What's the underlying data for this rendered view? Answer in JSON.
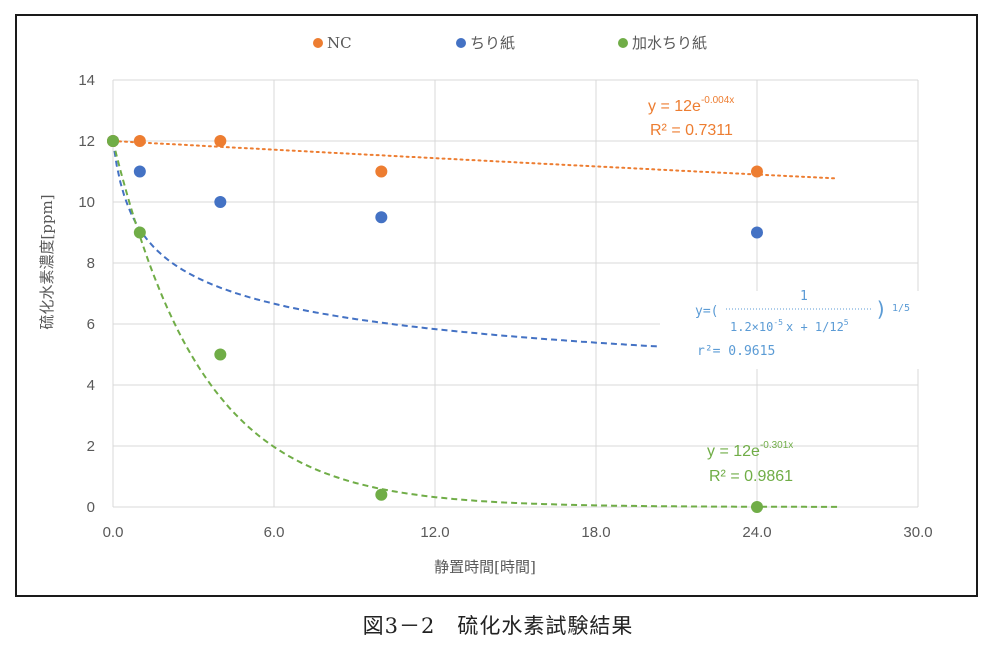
{
  "caption": "図3－2　硫化水素試験結果",
  "chart_data": {
    "type": "scatter",
    "xlabel": "静置時間[時間]",
    "ylabel": "硫化水素濃度[ppm]",
    "xlim": [
      0,
      30
    ],
    "ylim": [
      0,
      14
    ],
    "x_ticks": [
      "0.0",
      "6.0",
      "12.0",
      "18.0",
      "24.0",
      "30.0"
    ],
    "x_tick_values": [
      0,
      6,
      12,
      18,
      24,
      30
    ],
    "y_ticks": [
      "0",
      "2",
      "4",
      "6",
      "8",
      "10",
      "12",
      "14"
    ],
    "y_tick_values": [
      0,
      2,
      4,
      6,
      8,
      10,
      12,
      14
    ],
    "grid": true,
    "legend_position": "top",
    "series": [
      {
        "name": "NC",
        "color": "#ED7D31",
        "points": [
          [
            0,
            12
          ],
          [
            1,
            12
          ],
          [
            4,
            12
          ],
          [
            10,
            11
          ],
          [
            24,
            11
          ]
        ],
        "trendline": {
          "style": "dotted",
          "x_range": [
            0,
            27
          ],
          "equation": "y = 12e",
          "exponent": "-0.004x",
          "r2": "R² = 0.7311"
        }
      },
      {
        "name": "ちり紙",
        "color": "#4472C4",
        "points": [
          [
            0,
            12
          ],
          [
            1,
            11
          ],
          [
            4,
            10
          ],
          [
            10,
            9.5
          ],
          [
            24,
            9
          ]
        ],
        "trendline": {
          "style": "dashed",
          "x_range": [
            0,
            27.5
          ],
          "equation_lhs": "y=(",
          "equation_numerator": "1",
          "equation_denominator": "1.2×10",
          "equation_den_exp": "-5",
          "equation_den_rest": "x + 1/12",
          "equation_den_rest_exp": "5",
          "equation_rhs": ")",
          "equation_power": "1/5",
          "r2": "r²= 0.9615"
        }
      },
      {
        "name": "加水ちり紙",
        "color": "#70AD47",
        "points": [
          [
            0,
            12
          ],
          [
            1,
            9
          ],
          [
            4,
            5
          ],
          [
            10,
            0.4
          ],
          [
            24,
            0
          ]
        ],
        "trendline": {
          "style": "dashed",
          "x_range": [
            0,
            27
          ],
          "equation": "y = 12e",
          "exponent": "-0.301x",
          "r2": "R² = 0.9861"
        }
      }
    ]
  }
}
